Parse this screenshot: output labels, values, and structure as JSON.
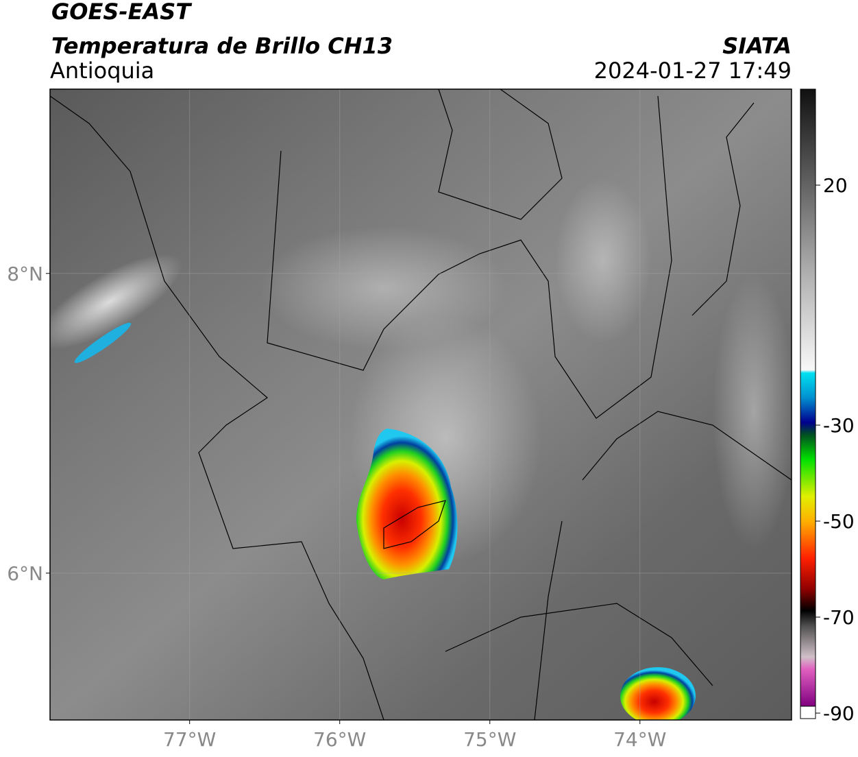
{
  "header": {
    "title": "GOES-EAST",
    "subtitle": "Temperatura de Brillo CH13",
    "region": "Antioquia",
    "source": "SIATA",
    "datetime": "2024-01-27 17:49"
  },
  "map": {
    "xlim": [
      -77.93,
      -72.99
    ],
    "ylim": [
      5.02,
      9.23
    ],
    "xticks": [
      {
        "value": -77,
        "label": "77°W"
      },
      {
        "value": -76,
        "label": "76°W"
      },
      {
        "value": -75,
        "label": "75°W"
      },
      {
        "value": -74,
        "label": "74°W"
      }
    ],
    "yticks": [
      {
        "value": 8,
        "label": "8°N"
      },
      {
        "value": 6,
        "label": "6°N"
      }
    ],
    "grid": true
  },
  "colorbar": {
    "lim": [
      -90,
      40
    ],
    "ticks": [
      20,
      -30,
      -50,
      -70,
      -90
    ]
  }
}
